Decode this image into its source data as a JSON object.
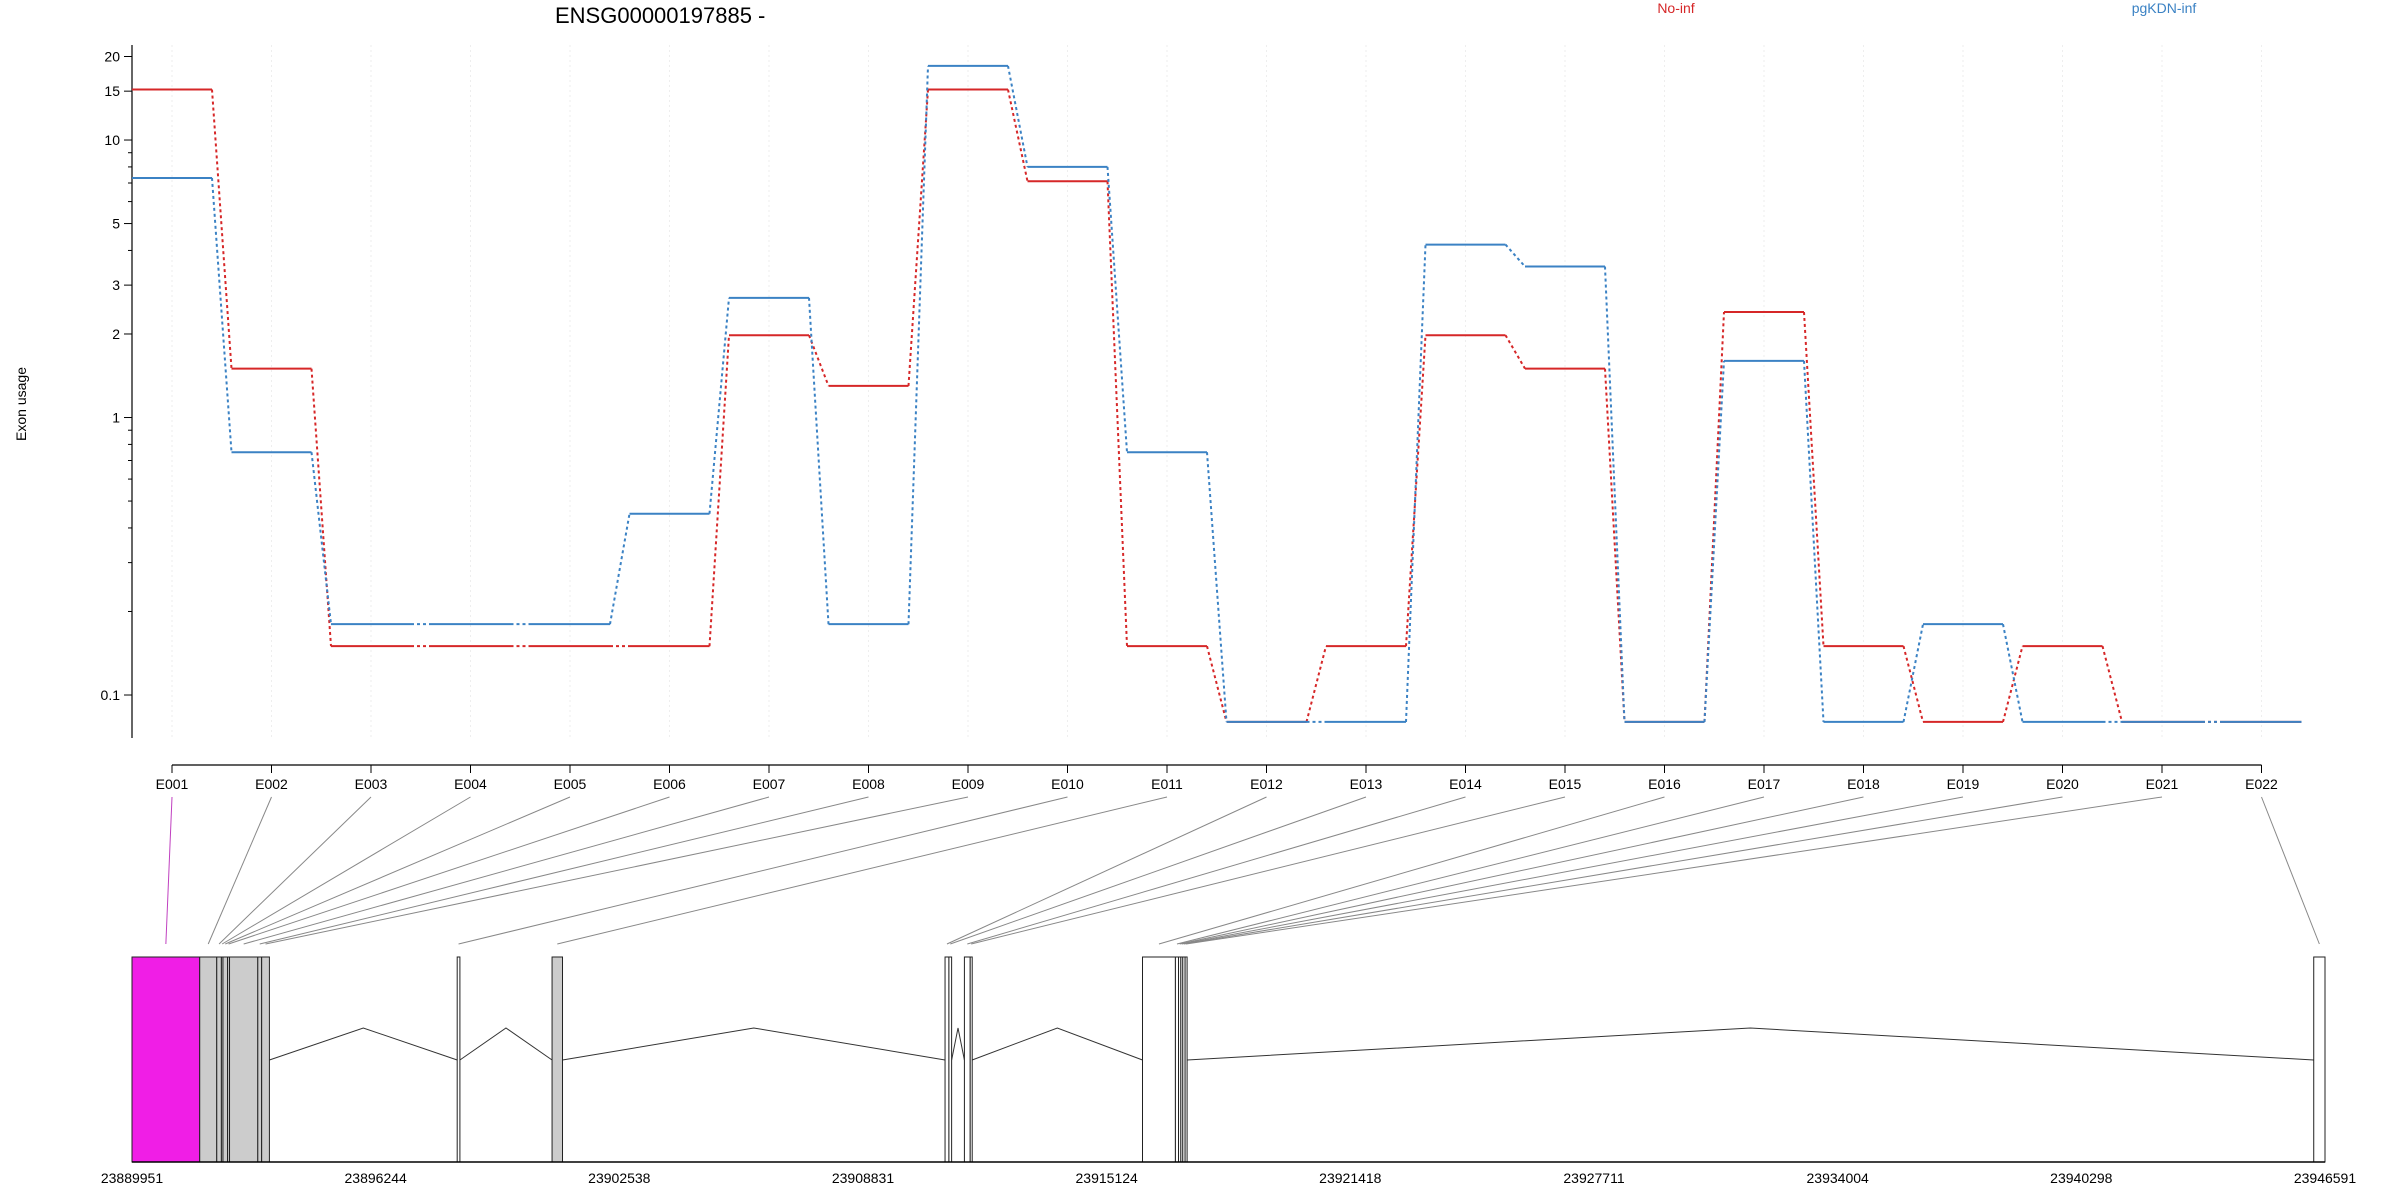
{
  "chart_data": {
    "type": "line",
    "title": "ENSG00000197885 -",
    "ylabel": "Exon usage",
    "xlabel": "",
    "y_scale": "log",
    "ylim": [
      0.07,
      22
    ],
    "yticks": [
      0.1,
      1,
      2,
      3,
      5,
      10,
      15,
      20
    ],
    "ytick_labels": [
      "0.1",
      "1",
      "2",
      "3",
      "5",
      "10",
      "15",
      "20"
    ],
    "grid": true,
    "legend_position": "top",
    "categories": [
      "E001",
      "E002",
      "E003",
      "E004",
      "E005",
      "E006",
      "E007",
      "E008",
      "E009",
      "E010",
      "E011",
      "E012",
      "E013",
      "E014",
      "E015",
      "E016",
      "E017",
      "E018",
      "E019",
      "E020",
      "E021",
      "E022"
    ],
    "series": [
      {
        "name": "No-inf",
        "color": "#d62728",
        "values": [
          15.2,
          1.5,
          0.15,
          0.15,
          0.15,
          0.15,
          1.98,
          1.3,
          15.2,
          7.1,
          0.15,
          0.08,
          0.15,
          1.98,
          1.5,
          0.08,
          2.4,
          0.15,
          0.08,
          0.15,
          0.08,
          0.08
        ]
      },
      {
        "name": "pgKDN-inf",
        "color": "#3b82c4",
        "values": [
          7.3,
          0.75,
          0.18,
          0.18,
          0.18,
          0.45,
          2.7,
          0.18,
          18.5,
          8.0,
          0.75,
          0.08,
          0.08,
          4.2,
          3.5,
          0.08,
          1.6,
          0.08,
          0.18,
          0.08,
          0.08,
          0.08
        ]
      }
    ],
    "genome_axis": {
      "range": [
        23889951,
        23946591
      ],
      "tick_labels": [
        "23889951",
        "23896244",
        "23902538",
        "23908831",
        "23915124",
        "23921418",
        "23927711",
        "23934004",
        "23940298",
        "23946591"
      ]
    },
    "gene_model": {
      "exons": [
        {
          "id": "E001",
          "start": 23889951,
          "end": 23891700,
          "color": "#f01ee6"
        },
        {
          "id": "E002",
          "start": 23891700,
          "end": 23892140,
          "color": "#cccccc"
        },
        {
          "id": "E003",
          "start": 23892140,
          "end": 23892260,
          "color": "#cccccc"
        },
        {
          "id": "E004",
          "start": 23892260,
          "end": 23892300,
          "color": "#cccccc"
        },
        {
          "id": "E005",
          "start": 23892300,
          "end": 23892420,
          "color": "#cccccc"
        },
        {
          "id": "E006",
          "start": 23892420,
          "end": 23892470,
          "color": "#cccccc"
        },
        {
          "id": "E007",
          "start": 23892470,
          "end": 23893200,
          "color": "#cccccc"
        },
        {
          "id": "E008",
          "start": 23893200,
          "end": 23893300,
          "color": "#cccccc"
        },
        {
          "id": "E009",
          "start": 23893300,
          "end": 23893500,
          "color": "#cccccc"
        },
        {
          "id": "E010",
          "start": 23898350,
          "end": 23898420,
          "color": "#ffffff"
        },
        {
          "id": "E011",
          "start": 23900800,
          "end": 23901070,
          "color": "#cccccc"
        },
        {
          "id": "E012",
          "start": 23910950,
          "end": 23911050,
          "color": "#ffffff"
        },
        {
          "id": "E013",
          "start": 23911050,
          "end": 23911120,
          "color": "#ffffff"
        },
        {
          "id": "E014",
          "start": 23911450,
          "end": 23911600,
          "color": "#ffffff"
        },
        {
          "id": "E015",
          "start": 23911600,
          "end": 23911650,
          "color": "#ffffff"
        },
        {
          "id": "E016",
          "start": 23916050,
          "end": 23916900,
          "color": "#ffffff"
        },
        {
          "id": "E017",
          "start": 23916900,
          "end": 23916980,
          "color": "#ffffff"
        },
        {
          "id": "E018",
          "start": 23916980,
          "end": 23917040,
          "color": "#ffffff"
        },
        {
          "id": "E019",
          "start": 23917040,
          "end": 23917090,
          "color": "#ffffff"
        },
        {
          "id": "E020",
          "start": 23917090,
          "end": 23917150,
          "color": "#ffffff"
        },
        {
          "id": "E021",
          "start": 23917150,
          "end": 23917200,
          "color": "#ffffff"
        },
        {
          "id": "E022",
          "start": 23946300,
          "end": 23946591,
          "color": "#ffffff"
        }
      ],
      "introns": [
        [
          23893500,
          23898350
        ],
        [
          23898420,
          23900800
        ],
        [
          23901070,
          23910950
        ],
        [
          23911120,
          23911450
        ],
        [
          23911650,
          23916050
        ],
        [
          23917200,
          23946300
        ]
      ]
    }
  }
}
